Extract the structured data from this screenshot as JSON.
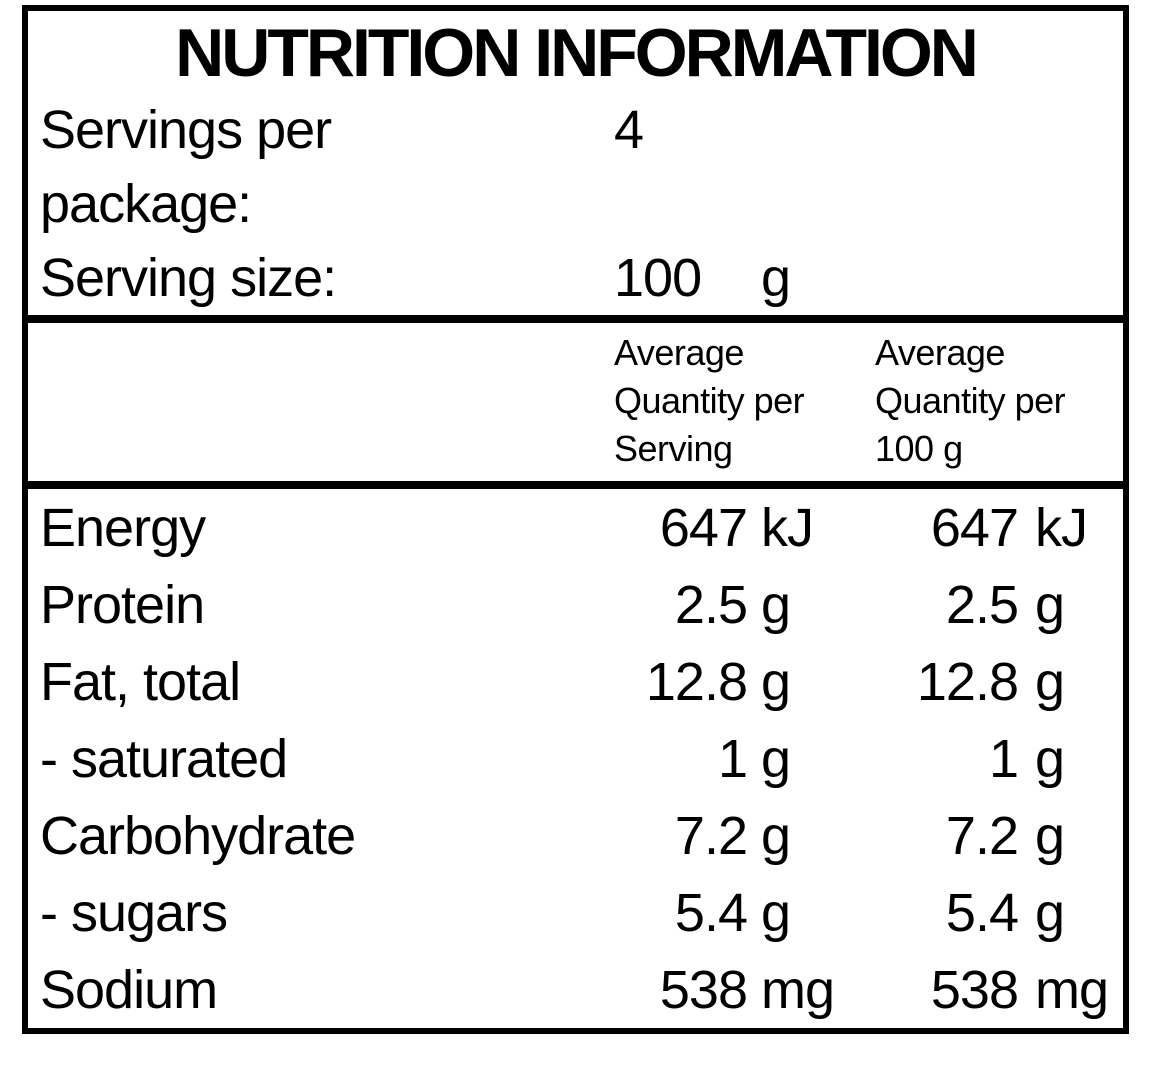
{
  "title": "NUTRITION INFORMATION",
  "serving_info": {
    "rows": [
      {
        "label_lines": [
          "Servings per",
          "package:"
        ],
        "value": "4",
        "unit": ""
      },
      {
        "label_lines": [
          "Serving size:"
        ],
        "value": "100",
        "unit": "g"
      }
    ]
  },
  "header": {
    "col_serving_lines": [
      "Average",
      "Quantity per",
      "Serving"
    ],
    "col_100g_lines": [
      "Average",
      "Quantity per",
      "100 g"
    ]
  },
  "nutrients": [
    {
      "name": "Energy",
      "per_serving": {
        "value": "647",
        "unit": "kJ"
      },
      "per_100g": {
        "value": "647",
        "unit": "kJ"
      }
    },
    {
      "name": "Protein",
      "per_serving": {
        "value": "2.5",
        "unit": "g"
      },
      "per_100g": {
        "value": "2.5",
        "unit": "g"
      }
    },
    {
      "name": "Fat, total",
      "per_serving": {
        "value": "12.8",
        "unit": "g"
      },
      "per_100g": {
        "value": "12.8",
        "unit": "g"
      }
    },
    {
      "name": "- saturated",
      "per_serving": {
        "value": "1",
        "unit": "g"
      },
      "per_100g": {
        "value": "1",
        "unit": "g"
      }
    },
    {
      "name": "Carbohydrate",
      "per_serving": {
        "value": "7.2",
        "unit": "g"
      },
      "per_100g": {
        "value": "7.2",
        "unit": "g"
      }
    },
    {
      "name": "- sugars",
      "per_serving": {
        "value": "5.4",
        "unit": "g"
      },
      "per_100g": {
        "value": "5.4",
        "unit": "g"
      }
    },
    {
      "name": "Sodium",
      "per_serving": {
        "value": "538",
        "unit": "mg"
      },
      "per_100g": {
        "value": "538",
        "unit": "mg"
      }
    }
  ],
  "colors": {
    "text": "#000000",
    "background": "#ffffff",
    "border": "#000000"
  }
}
